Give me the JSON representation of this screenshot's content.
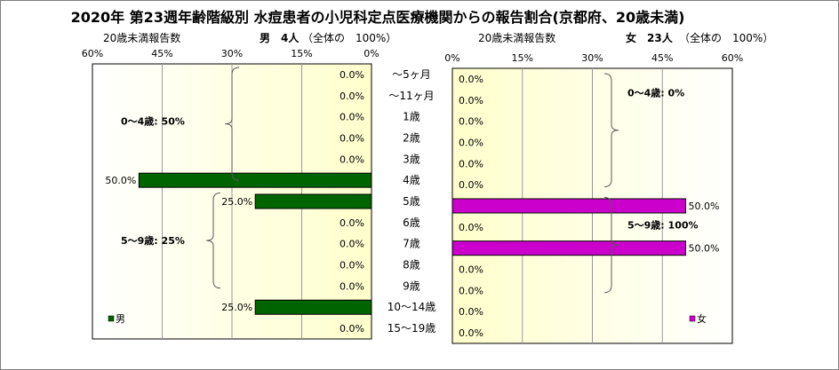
{
  "title": "2020年 第23週年齢階級別 水痘患者の小児科定点医療機関からの報告割合(京都府、20歳未満)",
  "headers": {
    "left_caption": "20歳未満報告数",
    "left_total": "男　4人",
    "left_share": "（全体の　100%）",
    "right_caption": "20歳未満報告数",
    "right_total": "女　23人",
    "right_share": "（全体の　100%）"
  },
  "chart_data": [
    {
      "type": "bar",
      "orientation": "horizontal",
      "direction": "right-to-left",
      "series": [
        {
          "name": "男",
          "values": [
            0,
            0,
            0,
            0,
            0,
            50,
            25,
            0,
            0,
            0,
            0,
            25,
            0
          ],
          "color": "#006400"
        }
      ],
      "categories": [
        "～5ヶ月",
        "～11ヶ月",
        "1歳",
        "2歳",
        "3歳",
        "4歳",
        "5歳",
        "6歳",
        "7歳",
        "8歳",
        "9歳",
        "10～14歳",
        "15～19歳"
      ],
      "value_labels": [
        "0.0%",
        "0.0%",
        "0.0%",
        "0.0%",
        "0.0%",
        "50.0%",
        "25.0%",
        "0.0%",
        "0.0%",
        "0.0%",
        "0.0%",
        "25.0%",
        "0.0%"
      ],
      "xlim": [
        0,
        60
      ],
      "ticks": [
        "60%",
        "45%",
        "30%",
        "15%",
        "0%"
      ],
      "legend": "bottom-left",
      "grid": true,
      "annotations": [
        "0～4歳: 50%",
        "5～9歳: 25%"
      ]
    },
    {
      "type": "bar",
      "orientation": "horizontal",
      "direction": "left-to-right",
      "series": [
        {
          "name": "女",
          "values": [
            0,
            0,
            0,
            0,
            0,
            0,
            50,
            0,
            50,
            0,
            0,
            0,
            0
          ],
          "color": "#cc00cc"
        }
      ],
      "categories": [
        "～5ヶ月",
        "～11ヶ月",
        "1歳",
        "2歳",
        "3歳",
        "4歳",
        "5歳",
        "6歳",
        "7歳",
        "8歳",
        "9歳",
        "10～14歳",
        "15～19歳"
      ],
      "value_labels": [
        "0.0%",
        "0.0%",
        "0.0%",
        "0.0%",
        "0.0%",
        "0.0%",
        "50.0%",
        "0.0%",
        "50.0%",
        "0.0%",
        "0.0%",
        "0.0%",
        "0.0%"
      ],
      "xlim": [
        0,
        60
      ],
      "ticks": [
        "0%",
        "15%",
        "30%",
        "45%",
        "60%"
      ],
      "legend": "bottom-right",
      "grid": true,
      "annotations": [
        "0～4歳: 0%",
        "5～9歳: 100%"
      ]
    }
  ]
}
